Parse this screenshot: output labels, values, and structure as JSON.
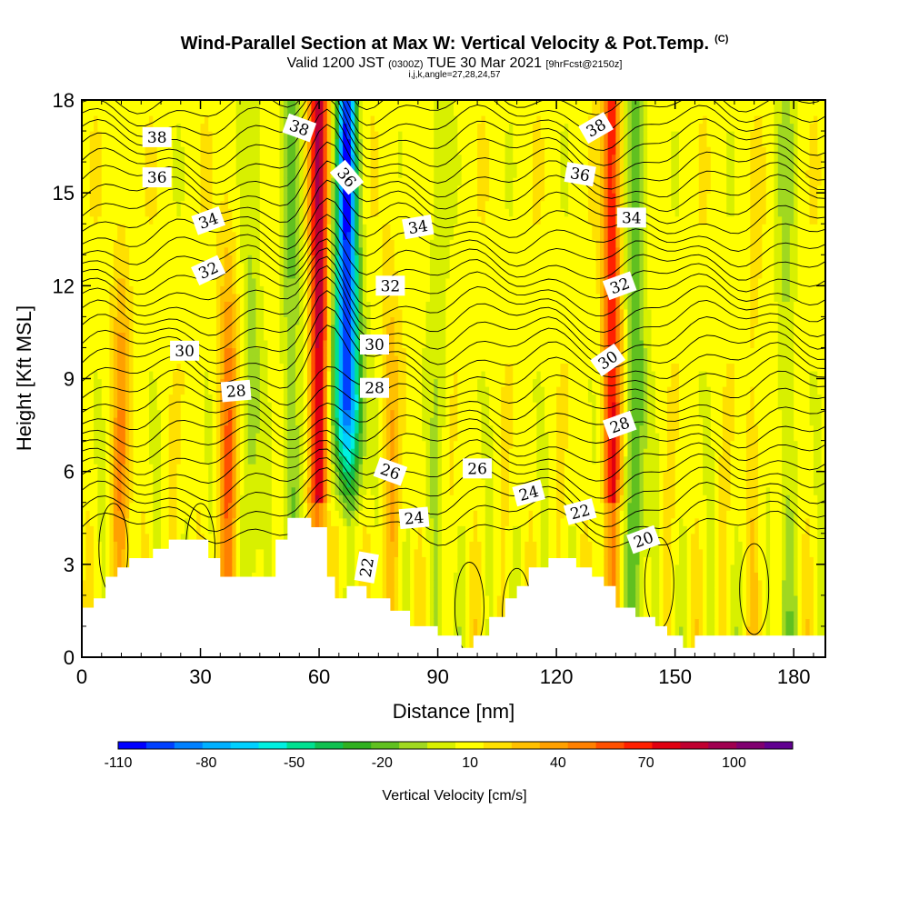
{
  "header": {
    "title": "Wind-Parallel Section at Max W: Vertical Velocity & Pot.Temp.",
    "copyright": "(C)",
    "valid_prefix": "Valid 1200 JST",
    "valid_utc": "(0300Z)",
    "valid_date": "TUE 30 Mar 2021",
    "forecast": "[9hrFcst@2150z]",
    "params": "i,j,k,angle=27,28,24,57"
  },
  "chart_data": {
    "type": "heatmap",
    "xlabel": "Distance [nm]",
    "ylabel": "Height [Kft MSL]",
    "xlim": [
      0,
      188
    ],
    "ylim": [
      0,
      18
    ],
    "x_ticks": [
      0,
      30,
      60,
      90,
      120,
      150,
      180
    ],
    "y_ticks": [
      0,
      3,
      6,
      9,
      12,
      15,
      18
    ],
    "colorbar": {
      "label": "Vertical Velocity [cm/s]",
      "min": -110,
      "max": 120,
      "tick_values": [
        -110,
        -80,
        -50,
        -20,
        10,
        40,
        70,
        100
      ],
      "colors": [
        "#0000ff",
        "#0040ff",
        "#0080ff",
        "#00b0ff",
        "#00d0ff",
        "#00f0e0",
        "#00e090",
        "#10c050",
        "#30b020",
        "#60c020",
        "#a0d820",
        "#d8f000",
        "#ffff00",
        "#ffe000",
        "#ffc000",
        "#ffa000",
        "#ff8000",
        "#ff5000",
        "#ff2000",
        "#e00010",
        "#c00030",
        "#a00050",
        "#800070",
        "#600090"
      ]
    },
    "updrafts": [
      {
        "x": 60,
        "peak_cm_s": 80
      },
      {
        "x": 37,
        "peak_cm_s": 40
      },
      {
        "x": 10,
        "peak_cm_s": 30
      },
      {
        "x": 134,
        "peak_cm_s": 60
      },
      {
        "x": 170,
        "peak_cm_s": 10
      },
      {
        "x": 78,
        "peak_cm_s": 20
      }
    ],
    "downdrafts": [
      {
        "x": 67,
        "peak_cm_s": -110
      },
      {
        "x": 53,
        "peak_cm_s": -30
      },
      {
        "x": 140,
        "peak_cm_s": -40
      },
      {
        "x": 43,
        "peak_cm_s": -20
      },
      {
        "x": 90,
        "peak_cm_s": -15
      },
      {
        "x": 178,
        "peak_cm_s": -20
      }
    ],
    "terrain": [
      [
        0,
        1.6
      ],
      [
        3,
        1.6
      ],
      [
        3,
        1.9
      ],
      [
        6,
        1.9
      ],
      [
        6,
        2.6
      ],
      [
        9,
        2.6
      ],
      [
        9,
        2.9
      ],
      [
        12,
        2.9
      ],
      [
        12,
        3.2
      ],
      [
        18,
        3.2
      ],
      [
        18,
        3.5
      ],
      [
        22,
        3.5
      ],
      [
        22,
        3.8
      ],
      [
        32,
        3.8
      ],
      [
        32,
        3.2
      ],
      [
        35,
        3.2
      ],
      [
        35,
        2.6
      ],
      [
        49,
        2.6
      ],
      [
        49,
        3.8
      ],
      [
        52,
        3.8
      ],
      [
        52,
        4.5
      ],
      [
        58,
        4.5
      ],
      [
        58,
        4.2
      ],
      [
        62,
        4.2
      ],
      [
        62,
        2.6
      ],
      [
        64,
        2.6
      ],
      [
        64,
        1.9
      ],
      [
        67,
        1.9
      ],
      [
        67,
        2.3
      ],
      [
        72,
        2.3
      ],
      [
        72,
        1.9
      ],
      [
        78,
        1.9
      ],
      [
        78,
        1.5
      ],
      [
        83,
        1.5
      ],
      [
        83,
        1.0
      ],
      [
        90,
        1.0
      ],
      [
        90,
        0.7
      ],
      [
        96,
        0.7
      ],
      [
        96,
        0.3
      ],
      [
        99,
        0.3
      ],
      [
        99,
        0.7
      ],
      [
        103,
        0.7
      ],
      [
        103,
        1.3
      ],
      [
        107,
        1.3
      ],
      [
        107,
        1.9
      ],
      [
        110,
        1.9
      ],
      [
        110,
        2.3
      ],
      [
        113,
        2.3
      ],
      [
        113,
        2.9
      ],
      [
        118,
        2.9
      ],
      [
        118,
        3.2
      ],
      [
        125,
        3.2
      ],
      [
        125,
        2.9
      ],
      [
        129,
        2.9
      ],
      [
        129,
        2.6
      ],
      [
        132,
        2.6
      ],
      [
        132,
        2.3
      ],
      [
        135,
        2.3
      ],
      [
        135,
        1.6
      ],
      [
        140,
        1.6
      ],
      [
        140,
        1.3
      ],
      [
        145,
        1.3
      ],
      [
        145,
        1.0
      ],
      [
        148,
        1.0
      ],
      [
        148,
        0.7
      ],
      [
        152,
        0.7
      ],
      [
        152,
        0.3
      ],
      [
        155,
        0.3
      ],
      [
        155,
        0.7
      ],
      [
        188,
        0.7
      ],
      [
        188,
        0
      ],
      [
        0,
        0
      ]
    ],
    "theta_labels": [
      {
        "text": "38",
        "x": 19,
        "y": 16.8,
        "rot": 0
      },
      {
        "text": "36",
        "x": 19,
        "y": 15.5,
        "rot": 0
      },
      {
        "text": "34",
        "x": 32,
        "y": 14.1,
        "rot": -20
      },
      {
        "text": "32",
        "x": 32,
        "y": 12.5,
        "rot": -25
      },
      {
        "text": "30",
        "x": 26,
        "y": 9.9,
        "rot": 0
      },
      {
        "text": "28",
        "x": 39,
        "y": 8.6,
        "rot": -5
      },
      {
        "text": "38",
        "x": 55,
        "y": 17.1,
        "rot": 20
      },
      {
        "text": "36",
        "x": 67,
        "y": 15.5,
        "rot": 50
      },
      {
        "text": "34",
        "x": 85,
        "y": 13.9,
        "rot": -10
      },
      {
        "text": "32",
        "x": 78,
        "y": 12.0,
        "rot": 0
      },
      {
        "text": "30",
        "x": 74,
        "y": 10.1,
        "rot": 0
      },
      {
        "text": "28",
        "x": 74,
        "y": 8.7,
        "rot": 0
      },
      {
        "text": "26",
        "x": 78,
        "y": 6.0,
        "rot": 20
      },
      {
        "text": "26",
        "x": 100,
        "y": 6.1,
        "rot": 0
      },
      {
        "text": "24",
        "x": 84,
        "y": 4.5,
        "rot": -5
      },
      {
        "text": "24",
        "x": 113,
        "y": 5.3,
        "rot": -15
      },
      {
        "text": "22",
        "x": 72,
        "y": 2.9,
        "rot": -80
      },
      {
        "text": "22",
        "x": 126,
        "y": 4.7,
        "rot": -15
      },
      {
        "text": "20",
        "x": 142,
        "y": 3.8,
        "rot": -20
      },
      {
        "text": "38",
        "x": 130,
        "y": 17.1,
        "rot": -30
      },
      {
        "text": "36",
        "x": 126,
        "y": 15.6,
        "rot": 10
      },
      {
        "text": "34",
        "x": 139,
        "y": 14.2,
        "rot": 0
      },
      {
        "text": "32",
        "x": 136,
        "y": 12.0,
        "rot": -20
      },
      {
        "text": "30",
        "x": 133,
        "y": 9.6,
        "rot": -35
      },
      {
        "text": "28",
        "x": 136,
        "y": 7.5,
        "rot": -20
      }
    ]
  }
}
